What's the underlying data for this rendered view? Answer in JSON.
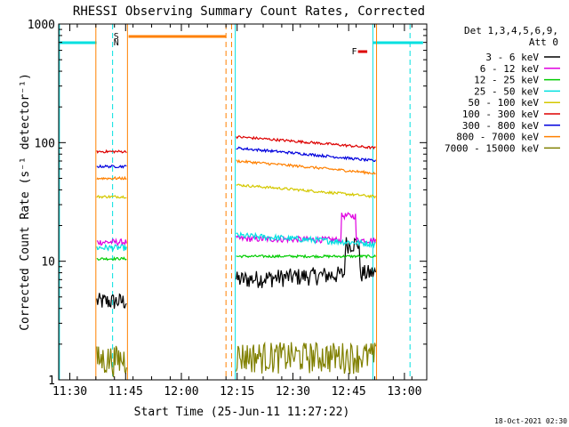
{
  "chart_data": {
    "type": "line",
    "title": "RHESSI Observing Summary Count Rates, Corrected",
    "xlabel": "Start Time (25-Jun-11 11:27:22)",
    "ylabel": "Corrected Count Rate (s⁻¹ detector⁻¹)",
    "yscale": "log",
    "xlim_minutes_after_1127": [
      0,
      99
    ],
    "ylim": [
      1,
      1000
    ],
    "x_ticks": [
      "11:30",
      "11:45",
      "12:00",
      "12:15",
      "12:30",
      "12:45",
      "13:00"
    ],
    "x_tick_minutes": [
      3,
      18,
      33,
      48,
      63,
      78,
      93
    ],
    "y_ticks": [
      "1",
      "10",
      "100",
      "1000"
    ],
    "y_tick_values": [
      1,
      10,
      100,
      1000
    ],
    "legend_header": [
      "Det 1,3,4,5,6,9,",
      "Att 0"
    ],
    "legend_position": "right",
    "series": [
      {
        "name": "3 - 6 keV",
        "color": "#000000",
        "seg1": 4.6,
        "seg2_start": 7.0,
        "seg2_end": 8.0
      },
      {
        "name": "6 - 12 keV",
        "color": "#e000e0",
        "seg1": 14.5,
        "seg2_start": 15.5,
        "seg2_end": 15.0
      },
      {
        "name": "12 - 25 keV",
        "color": "#00cc00",
        "seg1": 10.5,
        "seg2_start": 11.0,
        "seg2_end": 11.0
      },
      {
        "name": "25 - 50 keV",
        "color": "#00e0e0",
        "seg1": 13.0,
        "seg2_start": 16.5,
        "seg2_end": 14.0
      },
      {
        "name": "50 - 100 keV",
        "color": "#d4c800",
        "seg1": 35.0,
        "seg2_start": 44.0,
        "seg2_end": 35.0
      },
      {
        "name": "100 - 300 keV",
        "color": "#dd0000",
        "seg1": 84.0,
        "seg2_start": 112.0,
        "seg2_end": 90.0
      },
      {
        "name": "300 - 800 keV",
        "color": "#0000dd",
        "seg1": 63.0,
        "seg2_start": 90.0,
        "seg2_end": 70.0
      },
      {
        "name": "800 - 7000 keV",
        "color": "#ff8000",
        "seg1": 50.0,
        "seg2_start": 70.0,
        "seg2_end": 55.0
      },
      {
        "name": "7000 - 15000 keV",
        "color": "#808000",
        "seg1": 1.5,
        "seg2_start": 1.6,
        "seg2_end": 1.6
      }
    ],
    "data_intervals_minutes": [
      [
        10,
        18.5
      ],
      [
        47.5,
        85.5
      ]
    ],
    "flags": [
      {
        "label": "S",
        "color": "#ff8000"
      },
      {
        "label": "N",
        "color": "#00e0e0"
      },
      {
        "label": "F",
        "color": "#dd0000"
      }
    ]
  },
  "footer_timestamp": "18-Oct-2021 02:30"
}
